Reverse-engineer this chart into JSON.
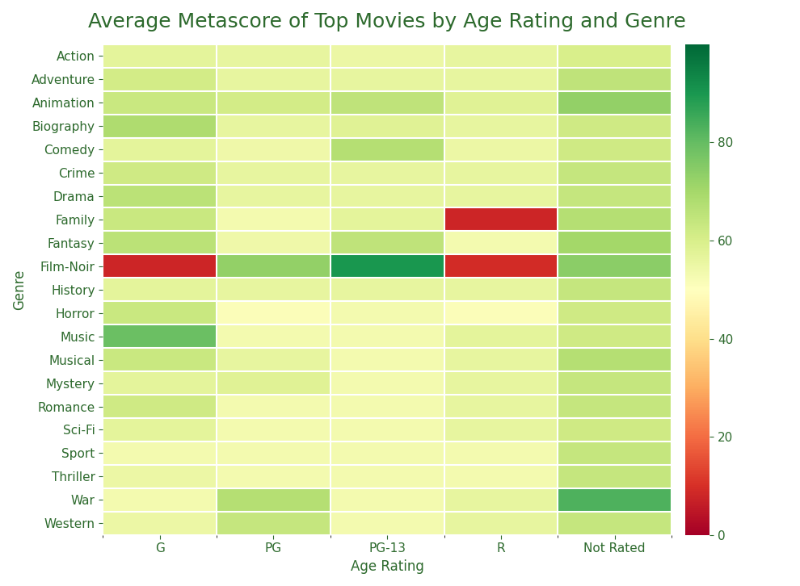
{
  "title": "Average Metascore of Top Movies by Age Rating and Genre",
  "xlabel": "Age Rating",
  "ylabel": "Genre",
  "x_labels": [
    "G",
    "PG",
    "PG-13",
    "R",
    "Not Rated"
  ],
  "y_labels": [
    "Action",
    "Adventure",
    "Animation",
    "Biography",
    "Comedy",
    "Crime",
    "Drama",
    "Family",
    "Fantasy",
    "Film-Noir",
    "History",
    "Horror",
    "Music",
    "Musical",
    "Mystery",
    "Romance",
    "Sci-Fi",
    "Sport",
    "Thriller",
    "War",
    "Western"
  ],
  "data": [
    [
      57,
      56,
      55,
      56,
      60
    ],
    [
      60,
      56,
      56,
      56,
      65
    ],
    [
      63,
      60,
      65,
      58,
      73
    ],
    [
      68,
      56,
      58,
      56,
      62
    ],
    [
      57,
      54,
      67,
      55,
      62
    ],
    [
      62,
      56,
      56,
      56,
      64
    ],
    [
      66,
      56,
      56,
      56,
      64
    ],
    [
      63,
      53,
      57,
      8,
      67
    ],
    [
      66,
      54,
      65,
      53,
      70
    ],
    [
      8,
      73,
      90,
      9,
      74
    ],
    [
      57,
      56,
      56,
      56,
      64
    ],
    [
      63,
      51,
      53,
      51,
      62
    ],
    [
      79,
      53,
      53,
      57,
      62
    ],
    [
      63,
      56,
      53,
      56,
      67
    ],
    [
      57,
      58,
      53,
      56,
      64
    ],
    [
      62,
      53,
      53,
      56,
      64
    ],
    [
      57,
      53,
      53,
      56,
      62
    ],
    [
      53,
      53,
      53,
      53,
      64
    ],
    [
      55,
      53,
      53,
      53,
      64
    ],
    [
      53,
      67,
      53,
      56,
      83
    ],
    [
      55,
      64,
      53,
      56,
      64
    ]
  ],
  "vmin": 0,
  "vmax": 100,
  "title_color": "#2d6a2d",
  "label_color": "#2d6a2d",
  "tick_color": "#2d6a2d",
  "background_color": "#ffffff",
  "title_fontsize": 18,
  "label_fontsize": 12,
  "tick_fontsize": 11,
  "cbar_ticks": [
    0,
    20,
    40,
    60,
    80
  ],
  "grid_color": "white",
  "grid_linewidth": 1.5
}
